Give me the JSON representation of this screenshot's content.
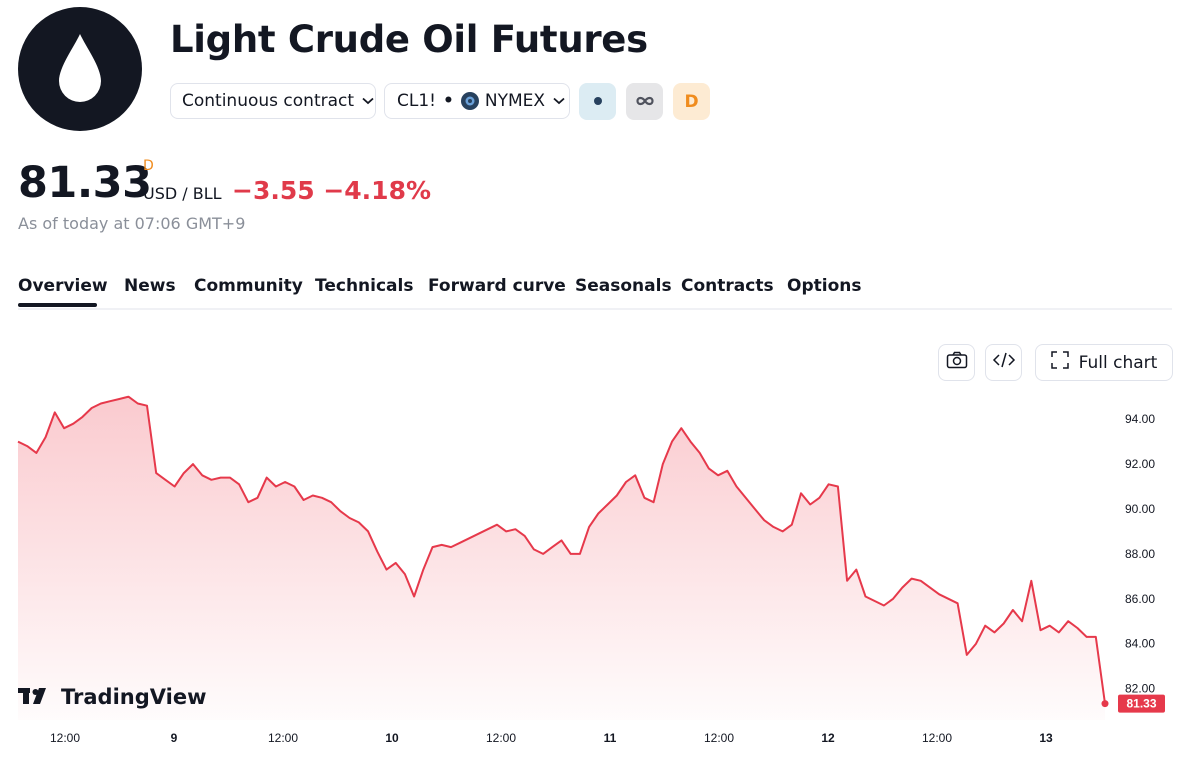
{
  "header": {
    "title": "Light Crude Oil Futures",
    "logo_icon": "oil-drop-icon",
    "contract_select": "Continuous contract",
    "symbol": "CL1!",
    "exchange": "NYMEX",
    "badge_d": "D",
    "icons": [
      "market-status-dot-icon",
      "infinity-icon",
      "chevron-down-icon"
    ]
  },
  "quote": {
    "price": "81.33",
    "price_flag": "D",
    "unit": "USD / BLL",
    "change": "−3.55 −4.18%",
    "as_of": "As of today at 07:06 GMT+9"
  },
  "tabs": [
    "Overview",
    "News",
    "Community",
    "Technicals",
    "Forward curve",
    "Seasonals",
    "Contracts",
    "Options"
  ],
  "active_tab": "Overview",
  "toolbar": {
    "full_chart_label": "Full chart",
    "icons": [
      "camera-icon",
      "code-icon",
      "fullscreen-icon"
    ]
  },
  "brand": {
    "watermark": "TradingView"
  },
  "colors": {
    "line": "#e6394b",
    "negative": "#e03a4a",
    "accent_orange": "#f08c1e",
    "text": "#131722"
  },
  "chart_data": {
    "type": "area",
    "y_ticks": [
      "94.00",
      "92.00",
      "90.00",
      "88.00",
      "86.00",
      "84.00",
      "82.00"
    ],
    "x_ticks": [
      "12:00",
      "9",
      "12:00",
      "10",
      "12:00",
      "11",
      "12:00",
      "12",
      "12:00",
      "13"
    ],
    "ylim": [
      80.6,
      95.3
    ],
    "last_value_label": "81.33",
    "series": [
      {
        "values": [
          93.0,
          92.8,
          92.5,
          93.2,
          94.3,
          93.6,
          93.8,
          94.1,
          94.5,
          94.7,
          94.8,
          94.9,
          95.0,
          94.7,
          94.6,
          91.6,
          91.3,
          91.0,
          91.6,
          92.0,
          91.5,
          91.3,
          91.4,
          91.4,
          91.1,
          90.3,
          90.5,
          91.4,
          91.0,
          91.2,
          91.0,
          90.4,
          90.6,
          90.5,
          90.3,
          89.9,
          89.6,
          89.4,
          89.0,
          88.1,
          87.3,
          87.6,
          87.1,
          86.1,
          87.3,
          88.3,
          88.4,
          88.3,
          88.5,
          88.7,
          88.9,
          89.1,
          89.3,
          89.0,
          89.1,
          88.8,
          88.2,
          88.0,
          88.3,
          88.6,
          88.0,
          88.0,
          89.2,
          89.8,
          90.2,
          90.6,
          91.2,
          91.5,
          90.5,
          90.3,
          92.0,
          93.0,
          93.6,
          93.0,
          92.5,
          91.8,
          91.5,
          91.7,
          91.0,
          90.5,
          90.0,
          89.5,
          89.2,
          89.0,
          89.3,
          90.7,
          90.2,
          90.5,
          91.1,
          91.0,
          86.8,
          87.3,
          86.1,
          85.9,
          85.7,
          86.0,
          86.5,
          86.9,
          86.8,
          86.5,
          86.2,
          86.0,
          85.8,
          83.5,
          84.0,
          84.8,
          84.5,
          84.9,
          85.5,
          85.0,
          86.8,
          84.6,
          84.8,
          84.5,
          85.0,
          84.7,
          84.3,
          84.3,
          81.33
        ]
      }
    ]
  }
}
